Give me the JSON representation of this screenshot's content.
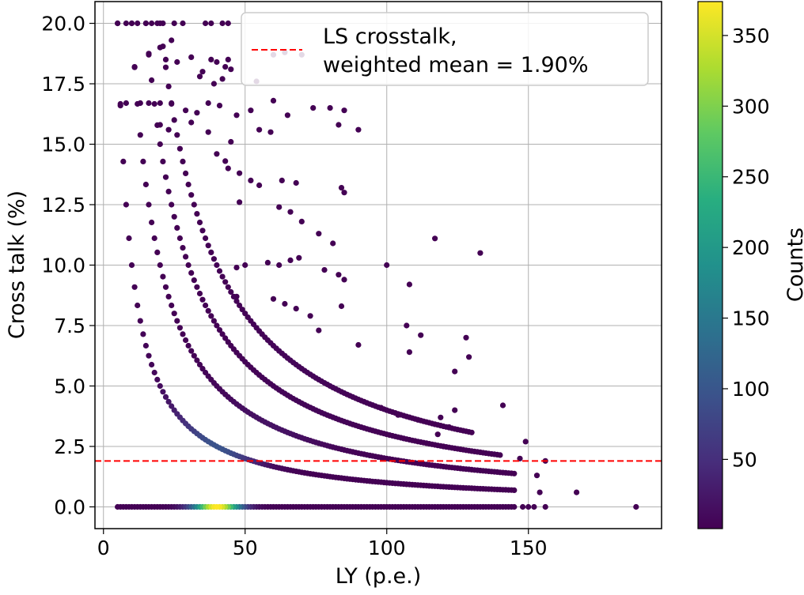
{
  "chart_data": {
    "type": "scatter",
    "title": "",
    "xlabel": "LY (p.e.)",
    "ylabel": "Cross talk (%)",
    "xlim": [
      -3,
      197
    ],
    "ylim": [
      -0.9,
      20.9
    ],
    "x_ticks": [
      0,
      50,
      100,
      150
    ],
    "y_ticks": [
      0.0,
      2.5,
      5.0,
      7.5,
      10.0,
      12.5,
      15.0,
      17.5,
      20.0
    ],
    "x_tick_labels": [
      "0",
      "50",
      "100",
      "150"
    ],
    "y_tick_labels": [
      "0.0",
      "2.5",
      "5.0",
      "7.5",
      "10.0",
      "12.5",
      "15.0",
      "17.5",
      "20.0"
    ],
    "grid": true,
    "colormap": "viridis",
    "colors": {
      "reference_line": "#ff0000",
      "grid": "#b0b0b0",
      "low": "#440154",
      "high": "#fde725"
    },
    "colorbar": {
      "label": "Counts",
      "range": [
        1,
        374
      ],
      "ticks": [
        50,
        100,
        150,
        200,
        250,
        300,
        350
      ],
      "tick_labels": [
        "50",
        "100",
        "150",
        "200",
        "250",
        "300",
        "350"
      ]
    },
    "reference_line": {
      "y": 1.9
    },
    "legend": {
      "location": "top-right",
      "lines": [
        "LS crosstalk,",
        "weighted mean = 1.90%"
      ]
    },
    "point_generation": {
      "curve_numerators": [
        100,
        200,
        300,
        400
      ],
      "curve_start_ly": [
        5,
        10,
        15,
        20
      ],
      "curve_end_ly": [
        145,
        145,
        140,
        130
      ],
      "zero_row_ly_range": [
        5,
        188
      ],
      "zero_row_peak_ly": 40
    },
    "extra_points": [
      [
        5,
        20
      ],
      [
        8,
        20
      ],
      [
        10,
        20
      ],
      [
        12,
        20
      ],
      [
        15,
        20
      ],
      [
        17,
        20
      ],
      [
        19,
        20
      ],
      [
        21,
        20
      ],
      [
        25,
        20
      ],
      [
        28,
        20
      ],
      [
        36,
        20
      ],
      [
        38,
        20
      ],
      [
        42,
        20
      ],
      [
        44,
        20
      ],
      [
        11,
        18.2
      ],
      [
        16,
        18.7
      ],
      [
        20,
        19.0
      ],
      [
        22,
        18.5
      ],
      [
        24,
        19.3
      ],
      [
        26,
        18.4
      ],
      [
        31,
        18.6
      ],
      [
        35,
        18.0
      ],
      [
        38,
        18.5
      ],
      [
        40,
        18.4
      ],
      [
        44,
        18.5
      ],
      [
        60,
        18.7
      ],
      [
        64,
        18.8
      ],
      [
        70,
        18.7
      ],
      [
        45,
        18.1
      ],
      [
        34,
        17.8
      ],
      [
        39,
        17.5
      ],
      [
        42,
        17.7
      ],
      [
        43,
        18.2
      ],
      [
        54,
        17.6
      ],
      [
        6,
        16.6
      ],
      [
        8,
        16.7
      ],
      [
        13,
        16.7
      ],
      [
        16,
        16.7
      ],
      [
        20,
        16.7
      ],
      [
        24,
        16.7
      ],
      [
        29,
        16.4
      ],
      [
        33,
        16.3
      ],
      [
        37,
        16.7
      ],
      [
        41,
        16.6
      ],
      [
        47,
        16.2
      ],
      [
        52,
        16.4
      ],
      [
        60,
        16.8
      ],
      [
        65,
        16.2
      ],
      [
        74,
        16.5
      ],
      [
        80,
        16.5
      ],
      [
        85,
        16.4
      ],
      [
        20,
        15.8
      ],
      [
        23,
        15.6
      ],
      [
        31,
        15.9
      ],
      [
        37,
        15.5
      ],
      [
        45,
        15.1
      ],
      [
        55,
        15.6
      ],
      [
        59,
        15.5
      ],
      [
        83,
        15.8
      ],
      [
        90,
        15.6
      ],
      [
        40,
        14.6
      ],
      [
        43,
        14.3
      ],
      [
        44,
        14.0
      ],
      [
        48,
        13.8
      ],
      [
        52,
        13.5
      ],
      [
        55,
        13.3
      ],
      [
        63,
        13.5
      ],
      [
        68,
        13.4
      ],
      [
        84,
        13.2
      ],
      [
        85,
        13.0
      ],
      [
        48,
        12.6
      ],
      [
        62,
        12.4
      ],
      [
        66,
        12.2
      ],
      [
        70,
        11.8
      ],
      [
        76,
        11.3
      ],
      [
        81,
        10.9
      ],
      [
        47,
        9.9
      ],
      [
        50,
        10.0
      ],
      [
        58,
        10.1
      ],
      [
        62,
        10.0
      ],
      [
        66,
        10.2
      ],
      [
        69,
        10.3
      ],
      [
        78,
        9.8
      ],
      [
        83,
        9.6
      ],
      [
        85,
        9.4
      ],
      [
        100,
        10.0
      ],
      [
        117,
        11.1
      ],
      [
        133,
        10.5
      ],
      [
        47,
        8.7
      ],
      [
        60,
        8.6
      ],
      [
        64,
        8.4
      ],
      [
        68,
        8.2
      ],
      [
        73,
        7.9
      ],
      [
        76,
        7.3
      ],
      [
        84,
        8.3
      ],
      [
        108,
        9.2
      ],
      [
        90,
        6.7
      ],
      [
        107,
        7.5
      ],
      [
        112,
        7.1
      ],
      [
        108,
        6.4
      ],
      [
        128,
        7.0
      ],
      [
        129,
        6.2
      ],
      [
        124,
        5.6
      ],
      [
        98,
        4.1
      ],
      [
        104,
        3.8
      ],
      [
        111,
        3.6
      ],
      [
        119,
        3.7
      ],
      [
        124,
        4.0
      ],
      [
        141,
        4.2
      ],
      [
        118,
        3.0
      ],
      [
        122,
        3.3
      ],
      [
        120,
        2.5
      ],
      [
        149,
        2.7
      ],
      [
        147,
        2.0
      ],
      [
        156,
        1.9
      ],
      [
        153,
        1.3
      ],
      [
        154,
        0.6
      ],
      [
        167,
        0.6
      ]
    ]
  }
}
